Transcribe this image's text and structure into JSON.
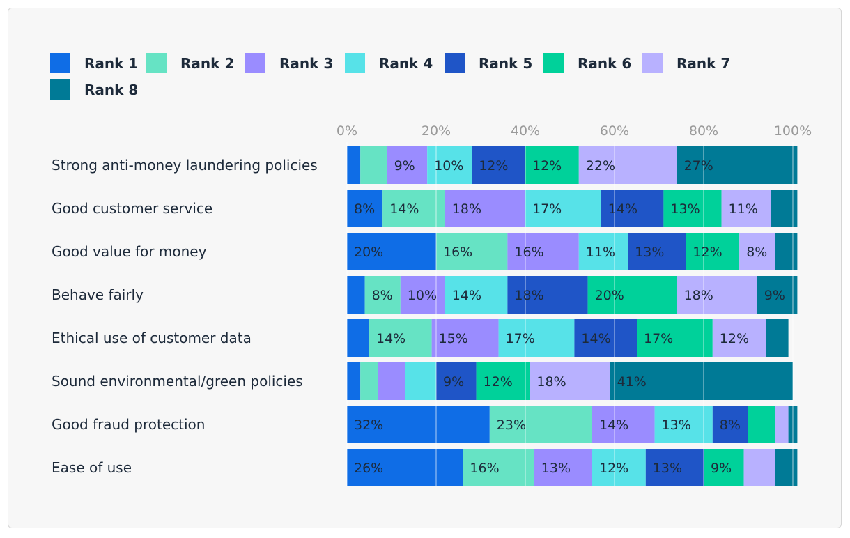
{
  "chart_data": {
    "type": "bar",
    "orientation": "horizontal",
    "stacked": true,
    "title": "",
    "xlabel": "",
    "ylabel": "",
    "xlim": [
      0,
      100
    ],
    "xticks": [
      "0%",
      "20%",
      "40%",
      "60%",
      "80%",
      "100%"
    ],
    "grid": true,
    "legend_position": "top",
    "categories": [
      "Strong anti-money laundering policies",
      "Good customer service",
      "Good value for money",
      "Behave fairly",
      "Ethical use of customer data",
      "Sound environmental/green policies",
      "Good fraud protection",
      "Ease of use"
    ],
    "series": [
      {
        "name": "Rank 1",
        "color": "#0f6de6",
        "values": [
          3,
          8,
          20,
          4,
          5,
          3,
          32,
          26
        ]
      },
      {
        "name": "Rank 2",
        "color": "#66e3c4",
        "values": [
          6,
          14,
          16,
          8,
          14,
          4,
          23,
          16
        ]
      },
      {
        "name": "Rank 3",
        "color": "#9a8cff",
        "values": [
          9,
          18,
          16,
          10,
          15,
          6,
          14,
          13
        ]
      },
      {
        "name": "Rank 4",
        "color": "#57e2e8",
        "values": [
          10,
          17,
          11,
          14,
          17,
          7,
          13,
          12
        ]
      },
      {
        "name": "Rank 5",
        "color": "#1f55c7",
        "values": [
          12,
          14,
          13,
          18,
          14,
          9,
          8,
          13
        ]
      },
      {
        "name": "Rank 6",
        "color": "#00d19a",
        "values": [
          12,
          13,
          12,
          20,
          17,
          12,
          6,
          9
        ]
      },
      {
        "name": "Rank 7",
        "color": "#b8b1ff",
        "values": [
          22,
          11,
          8,
          18,
          12,
          18,
          3,
          7
        ]
      },
      {
        "name": "Rank 8",
        "color": "#007a96",
        "values": [
          27,
          6,
          5,
          9,
          5,
          41,
          2,
          5
        ]
      }
    ],
    "data_labels": [
      [
        "",
        "",
        "9%",
        "10%",
        "12%",
        "12%",
        "22%",
        "27%"
      ],
      [
        "8%",
        "14%",
        "18%",
        "17%",
        "14%",
        "13%",
        "11%",
        ""
      ],
      [
        "20%",
        "16%",
        "16%",
        "11%",
        "13%",
        "12%",
        "8%",
        ""
      ],
      [
        "",
        "8%",
        "10%",
        "14%",
        "18%",
        "20%",
        "18%",
        "9%"
      ],
      [
        "",
        "14%",
        "15%",
        "17%",
        "14%",
        "17%",
        "12%",
        ""
      ],
      [
        "",
        "",
        "",
        "",
        "9%",
        "12%",
        "18%",
        "41%"
      ],
      [
        "32%",
        "23%",
        "14%",
        "13%",
        "8%",
        "",
        "",
        ""
      ],
      [
        "26%",
        "16%",
        "13%",
        "12%",
        "13%",
        "9%",
        "",
        ""
      ]
    ]
  }
}
